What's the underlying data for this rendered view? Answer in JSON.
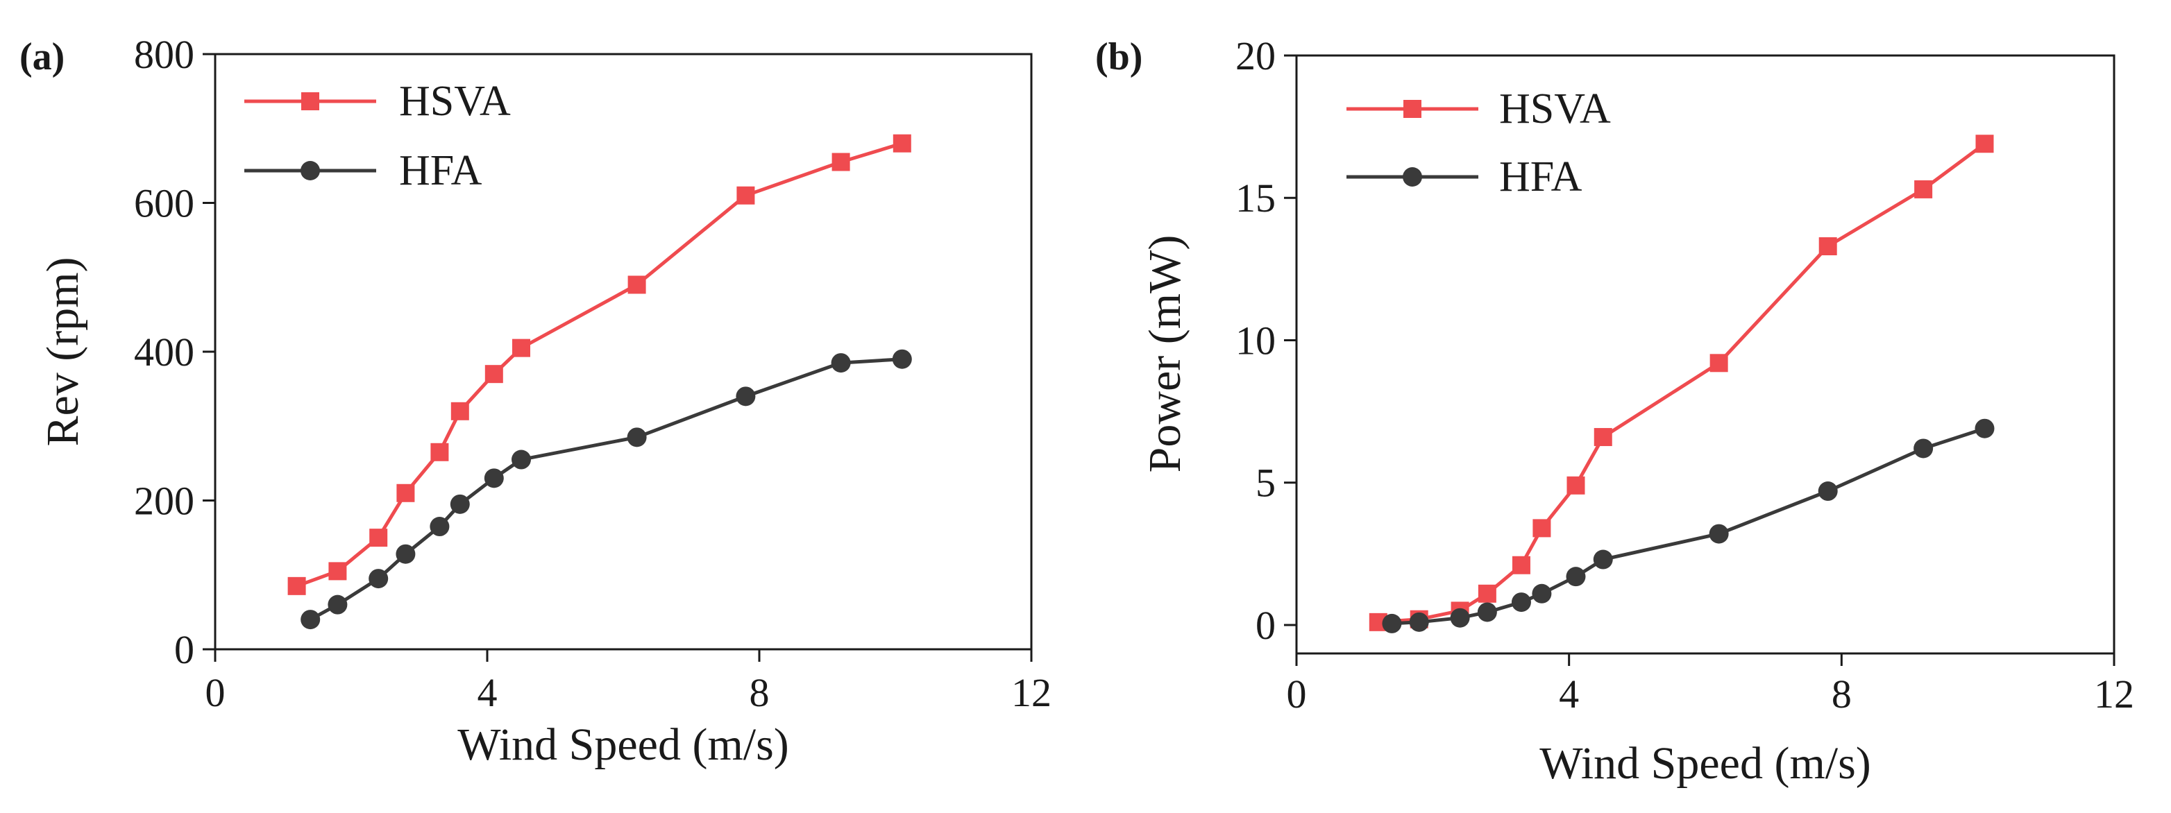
{
  "chart_data": [
    {
      "type": "line",
      "panel_label": "(a)",
      "title": "",
      "xlabel": "Wind Speed (m/s)",
      "ylabel": "Rev (rpm)",
      "xlim": [
        0,
        12
      ],
      "ylim": [
        0,
        800
      ],
      "xticks": [
        "0",
        "4",
        "8",
        "12"
      ],
      "yticks": [
        "0",
        "200",
        "400",
        "600",
        "800"
      ],
      "grid": false,
      "legend_position": "top-left",
      "series": [
        {
          "name": "HSVA",
          "color": "#ef4b4f",
          "marker": "square",
          "x": [
            1.2,
            1.8,
            2.4,
            2.8,
            3.3,
            3.6,
            4.1,
            4.5,
            6.2,
            7.8,
            9.2,
            10.1
          ],
          "y": [
            85,
            105,
            150,
            210,
            265,
            320,
            370,
            405,
            490,
            610,
            655,
            680
          ]
        },
        {
          "name": "HFA",
          "color": "#3a3a3a",
          "marker": "circle",
          "x": [
            1.4,
            1.8,
            2.4,
            2.8,
            3.3,
            3.6,
            4.1,
            4.5,
            6.2,
            7.8,
            9.2,
            10.1
          ],
          "y": [
            40,
            60,
            95,
            128,
            165,
            195,
            230,
            255,
            285,
            340,
            385,
            390
          ]
        }
      ]
    },
    {
      "type": "line",
      "panel_label": "(b)",
      "title": "",
      "xlabel": "Wind Speed (m/s)",
      "ylabel": "Power (mW)",
      "xlim": [
        0,
        12
      ],
      "ylim": [
        -1,
        20
      ],
      "xticks": [
        "0",
        "4",
        "8",
        "12"
      ],
      "yticks": [
        "0",
        "5",
        "10",
        "15",
        "20"
      ],
      "grid": false,
      "legend_position": "top-left",
      "series": [
        {
          "name": "HSVA",
          "color": "#ef4b4f",
          "marker": "square",
          "x": [
            1.2,
            1.8,
            2.4,
            2.8,
            3.3,
            3.6,
            4.1,
            4.5,
            6.2,
            7.8,
            9.2,
            10.1
          ],
          "y": [
            0.1,
            0.2,
            0.5,
            1.1,
            2.1,
            3.4,
            4.9,
            6.6,
            9.2,
            13.3,
            15.3,
            16.9
          ]
        },
        {
          "name": "HFA",
          "color": "#3a3a3a",
          "marker": "circle",
          "x": [
            1.4,
            1.8,
            2.4,
            2.8,
            3.3,
            3.6,
            4.1,
            4.5,
            6.2,
            7.8,
            9.2,
            10.1
          ],
          "y": [
            0.05,
            0.1,
            0.25,
            0.45,
            0.8,
            1.1,
            1.7,
            2.3,
            3.2,
            4.7,
            6.2,
            6.9
          ]
        }
      ]
    }
  ]
}
